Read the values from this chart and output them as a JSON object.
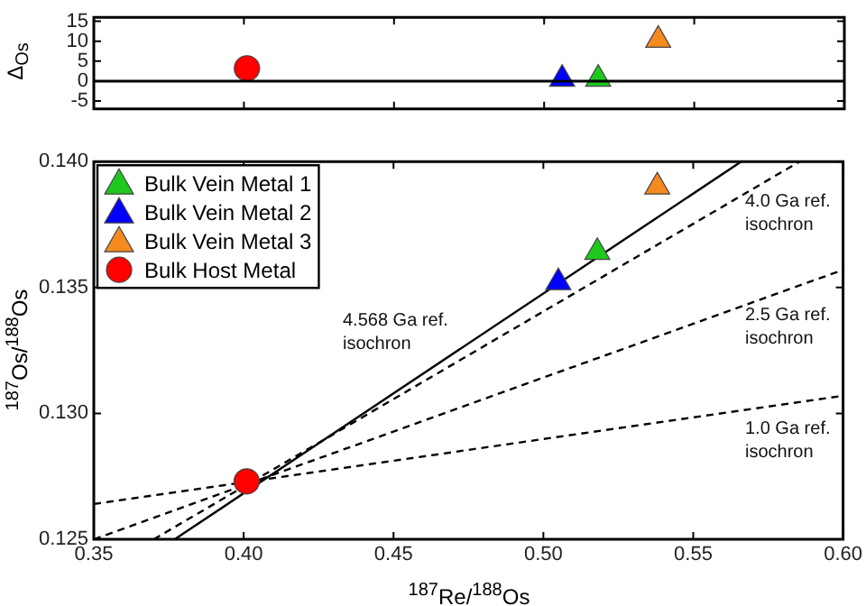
{
  "chart_data": [
    {
      "type": "scatter",
      "ylabel": "Δ$_{Os}$",
      "xlim": [
        0.35,
        0.6
      ],
      "xticks": [
        {
          "value": 0.35,
          "label": null
        },
        {
          "value": 0.4,
          "label": null
        },
        {
          "value": 0.45,
          "label": null
        },
        {
          "value": 0.5,
          "label": null
        },
        {
          "value": 0.55,
          "label": null
        },
        {
          "value": 0.6,
          "label": null
        }
      ],
      "ylim": [
        -7,
        16
      ],
      "yticks": [
        -5,
        0,
        5,
        10,
        15
      ],
      "tick_labels": "y",
      "legend": false,
      "ref_lines": [
        {
          "axis": "y",
          "value": 0,
          "color": "#000000",
          "line_style": "solid"
        }
      ],
      "series": [
        {
          "color": "#1ec81e",
          "marker": "triangle",
          "x": [
            0.518
          ],
          "values": [
            0.5
          ]
        },
        {
          "color": "#0000ff",
          "marker": "triangle",
          "x": [
            0.506
          ],
          "values": [
            0.5
          ]
        },
        {
          "color": "#f58a1f",
          "marker": "triangle",
          "x": [
            0.538
          ],
          "values": [
            10.3
          ]
        },
        {
          "color": "#ff0000",
          "marker": "circle",
          "x": [
            0.401
          ],
          "values": [
            3.2
          ]
        }
      ]
    },
    {
      "type": "scatter",
      "xlabel": "$^{187}$Re/$^{188}$Os",
      "ylabel": "$^{187}$Os/$^{188}$Os",
      "xlim": [
        0.35,
        0.6
      ],
      "xticks": [
        0.35,
        {
          "value": 0.4,
          "label": "0.40"
        },
        0.45,
        {
          "value": 0.5,
          "label": "0.50"
        },
        0.55,
        {
          "value": 0.6,
          "label": "0.60"
        }
      ],
      "ylim": [
        0.125,
        0.14
      ],
      "yticks": [
        0.125,
        {
          "value": 0.13,
          "label": "0.130"
        },
        0.135,
        {
          "value": 0.14,
          "label": "0.140"
        }
      ],
      "legend": "top left",
      "annotations": [
        "4.568 Ga ref. isochron",
        "4.0 Ga ref. isochron",
        "2.5 Ga ref. isochron",
        "1.0 Ga ref. isochron"
      ],
      "series": [
        {
          "type": "line",
          "color": "#000000",
          "line_style": "solid",
          "marker": "none",
          "x": [
            0.377,
            0.566
          ],
          "values": [
            0.125,
            0.14
          ]
        },
        {
          "type": "line",
          "color": "#000000",
          "line_style": "dashed",
          "marker": "none",
          "x": [
            0.37,
            0.5855
          ],
          "values": [
            0.125,
            0.14
          ]
        },
        {
          "type": "line",
          "color": "#000000",
          "line_style": "dashed",
          "marker": "none",
          "x": [
            0.35,
            0.6
          ],
          "values": [
            0.125,
            0.1357
          ]
        },
        {
          "type": "line",
          "color": "#000000",
          "line_style": "dashed",
          "marker": "none",
          "x": [
            0.35,
            0.6
          ],
          "values": [
            0.1264,
            0.1307
          ]
        },
        {
          "name": "Bulk Vein Metal 1",
          "color": "#1ec81e",
          "marker": "triangle",
          "x": [
            0.518
          ],
          "values": [
            0.1364
          ]
        },
        {
          "name": "Bulk Vein Metal 2",
          "color": "#0000ff",
          "marker": "triangle",
          "x": [
            0.505
          ],
          "values": [
            0.1352
          ]
        },
        {
          "name": "Bulk Vein Metal 3",
          "color": "#f58a1f",
          "marker": "triangle",
          "x": [
            0.538
          ],
          "values": [
            0.139
          ]
        },
        {
          "name": "Bulk Host Metal",
          "color": "#ff0000",
          "marker": "circle",
          "x": [
            0.401
          ],
          "values": [
            0.1273
          ]
        }
      ]
    }
  ]
}
